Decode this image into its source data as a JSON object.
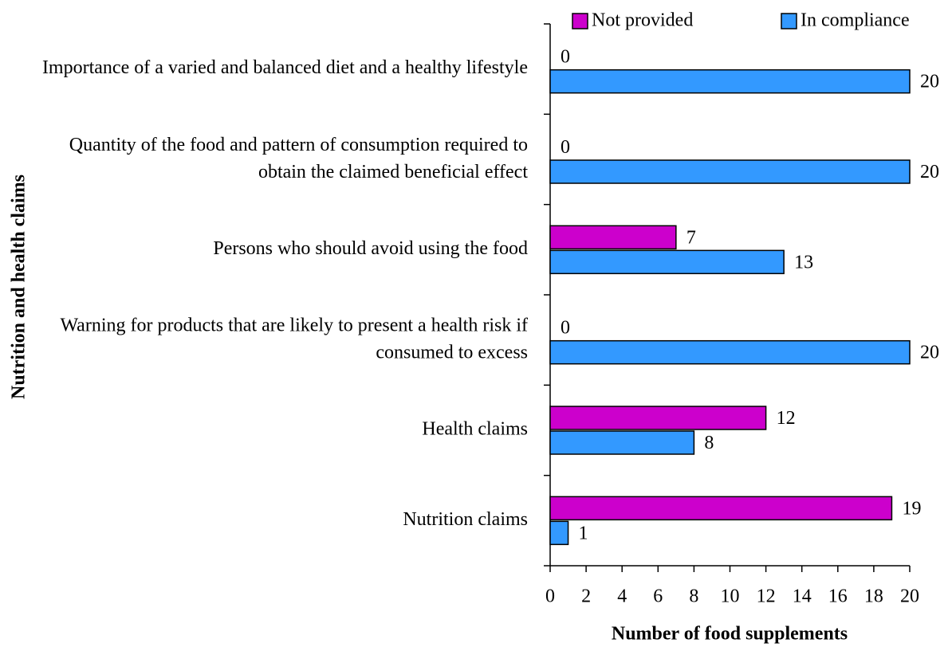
{
  "chart_data": {
    "type": "hbar",
    "xlabel": "Number of food supplements",
    "ylabel": "Nutrition and health claims",
    "categories": [
      "Importance of a varied and balanced diet and a healthy lifestyle",
      "Quantity of the food and pattern of consumption required to obtain the claimed beneficial effect",
      "Persons who should avoid using the food",
      "Warning for products that are likely to present a health risk if consumed to excess",
      "Health claims",
      "Nutrition claims"
    ],
    "series": [
      {
        "name": "Not provided",
        "color": "#cc00cc",
        "values": [
          0,
          0,
          7,
          0,
          12,
          19
        ]
      },
      {
        "name": "In compliance",
        "color": "#3399ff",
        "values": [
          20,
          20,
          13,
          20,
          8,
          1
        ]
      }
    ],
    "xlim": [
      0,
      20
    ],
    "xticks": [
      0,
      2,
      4,
      6,
      8,
      10,
      12,
      14,
      16,
      18,
      20
    ],
    "legend": "top",
    "grid": false
  }
}
